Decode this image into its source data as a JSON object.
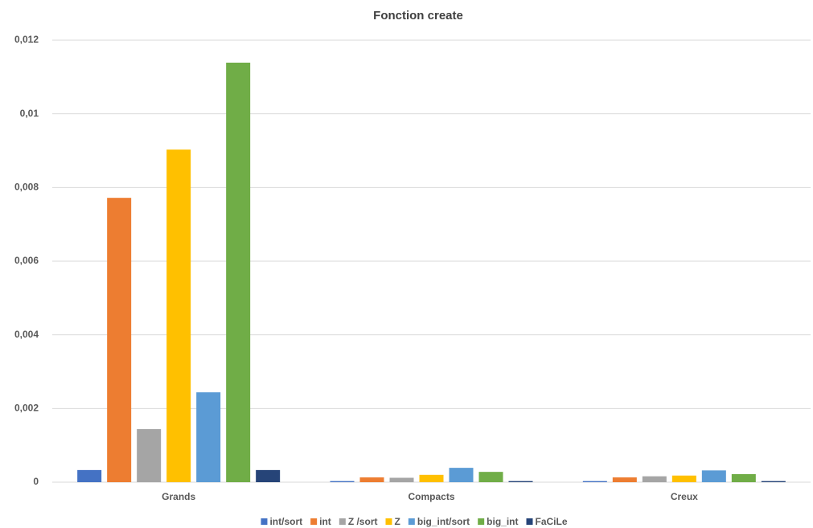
{
  "chart_data": {
    "type": "bar",
    "title": "Fonction create",
    "categories": [
      "Grands",
      "Compacts",
      "Creux"
    ],
    "series": [
      {
        "name": "int/sort",
        "color": "#4472c4",
        "values": [
          0.00033,
          3e-05,
          3e-05
        ]
      },
      {
        "name": "int",
        "color": "#ed7d31",
        "values": [
          0.00772,
          0.00013,
          0.00013
        ]
      },
      {
        "name": "Z /sort",
        "color": "#a5a5a5",
        "values": [
          0.00144,
          0.00012,
          0.00016
        ]
      },
      {
        "name": "Z",
        "color": "#ffc000",
        "values": [
          0.00903,
          0.0002,
          0.00018
        ]
      },
      {
        "name": "big_int/sort",
        "color": "#5b9bd5",
        "values": [
          0.00244,
          0.00039,
          0.00032
        ]
      },
      {
        "name": "big_int",
        "color": "#70ad47",
        "values": [
          0.01139,
          0.00028,
          0.00022
        ]
      },
      {
        "name": "FaCiLe",
        "color": "#264478",
        "values": [
          0.00033,
          3e-05,
          3e-05
        ]
      }
    ],
    "ylim": [
      0,
      0.012
    ],
    "yticks": [
      0,
      {
        "value": 0.002,
        "label": "0,002"
      },
      {
        "value": 0.004,
        "label": "0,004"
      },
      {
        "value": 0.006,
        "label": "0,006"
      },
      {
        "value": 0.008,
        "label": "0,008"
      },
      {
        "value": 0.01,
        "label": "0,01"
      },
      {
        "value": 0.012,
        "label": "0,012"
      }
    ],
    "grid": true,
    "legend": "bottom"
  }
}
